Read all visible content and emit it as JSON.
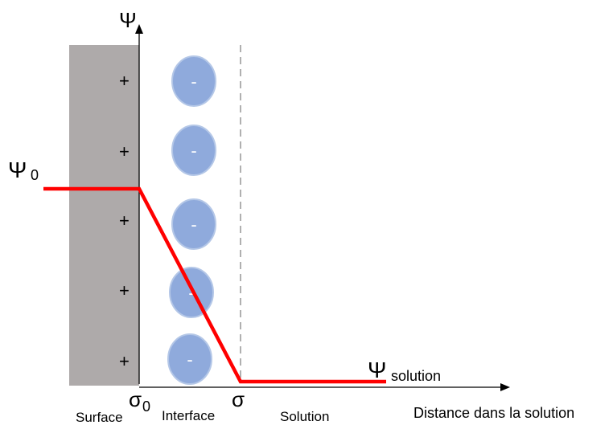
{
  "axes": {
    "y_label": "Ψ",
    "x_label": "Distance dans la solution"
  },
  "potential_labels": {
    "psi0_symbol": "Ψ",
    "psi0_subscript": "0",
    "psi_solution_symbol": "Ψ",
    "psi_solution_subscript": "solution"
  },
  "charge_labels": {
    "sigma0_symbol": "σ",
    "sigma0_subscript": "0",
    "sigma": "σ"
  },
  "regions": {
    "surface": "Surface",
    "interface": "Interface",
    "solution": "Solution"
  },
  "surface_charges": [
    "+",
    "+",
    "+",
    "+",
    "+"
  ],
  "ions": [
    "-",
    "-",
    "-",
    "-",
    "-"
  ],
  "colors": {
    "surface_fill": "#aeaaaa",
    "ion_fill": "#8faadc",
    "potential_line": "#ff0000",
    "boundary_dash": "#b0b0b0"
  }
}
